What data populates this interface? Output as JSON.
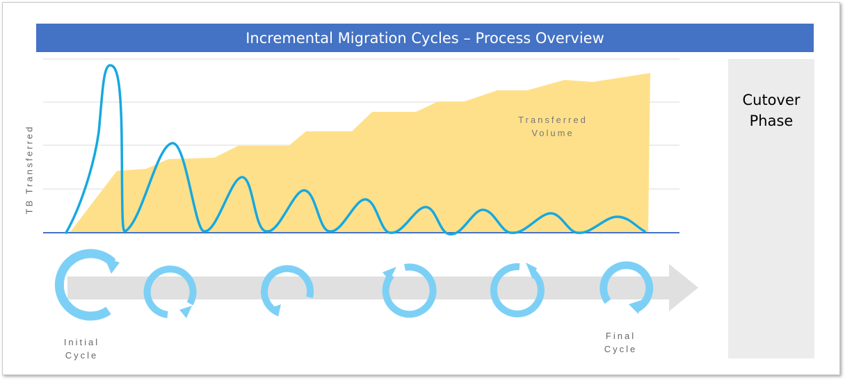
{
  "title": "Incremental Migration Cycles – Process Overview",
  "cutover_label": [
    "Cutover",
    "Phase"
  ],
  "y_axis_label": "TB Transferred",
  "area_label": [
    "Transferred",
    "Volume"
  ],
  "initial_cycle_label": [
    "Initial",
    "Cycle"
  ],
  "final_cycle_label": [
    "Final",
    "Cycle"
  ],
  "colors": {
    "title_bar": "#4472c4",
    "transferred_area": "#ffe08a",
    "cycle_curve": "#16a8e0",
    "cycle_icon": "#7dd0f5",
    "timeline_arrow": "#e0e0e0",
    "cutover_panel": "#ececec",
    "baseline": "#4472c4"
  },
  "icons": {
    "cycle": "circular-arrow-icon",
    "timeline": "right-arrow"
  },
  "cycle_count": 6
}
